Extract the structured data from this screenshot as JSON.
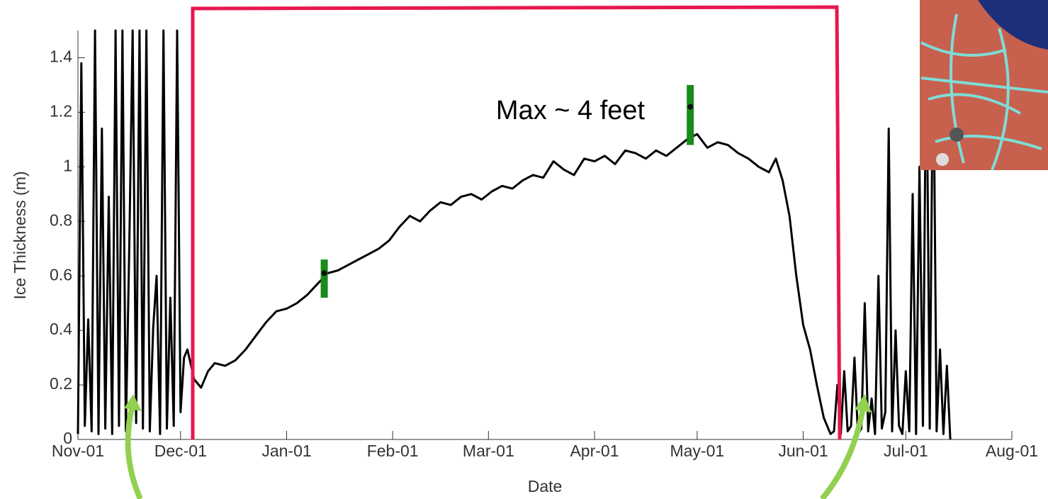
{
  "chart_data": {
    "type": "line",
    "xlabel": "Date",
    "ylabel": "Ice Thickness (m)",
    "annotation": "Max ~ 4 feet",
    "xlim": [
      0,
      273
    ],
    "xticks": [
      {
        "value": 0,
        "label": "Nov-01"
      },
      {
        "value": 30,
        "label": "Dec-01"
      },
      {
        "value": 61,
        "label": "Jan-01"
      },
      {
        "value": 92,
        "label": "Feb-01"
      },
      {
        "value": 120,
        "label": "Mar-01"
      },
      {
        "value": 151,
        "label": "Apr-01"
      },
      {
        "value": 181,
        "label": "May-01"
      },
      {
        "value": 212,
        "label": "Jun-01"
      },
      {
        "value": 242,
        "label": "Jul-01"
      },
      {
        "value": 273,
        "label": "Aug-01"
      }
    ],
    "ylim": [
      0,
      1.5
    ],
    "yticks": [
      0,
      0.2,
      0.4,
      0.6,
      0.8,
      1,
      1.2,
      1.4
    ],
    "grid": false,
    "series": [
      {
        "color": "#000000",
        "x": [
          0,
          1,
          2,
          3,
          4,
          5,
          6,
          7,
          8,
          9,
          10,
          11,
          12,
          13,
          14,
          15,
          16,
          17,
          18,
          19,
          20,
          21,
          22,
          23,
          24,
          25,
          26,
          27,
          28,
          29,
          30,
          31,
          32,
          34,
          36,
          38,
          40,
          43,
          46,
          49,
          52,
          55,
          58,
          61,
          64,
          67,
          70,
          73,
          76,
          79,
          82,
          85,
          88,
          91,
          94,
          97,
          100,
          103,
          106,
          109,
          112,
          115,
          118,
          121,
          124,
          127,
          130,
          133,
          136,
          139,
          142,
          145,
          148,
          151,
          154,
          157,
          160,
          163,
          166,
          169,
          172,
          175,
          178,
          181,
          184,
          187,
          190,
          193,
          196,
          199,
          202,
          204,
          206,
          208,
          210,
          212,
          214,
          216,
          218,
          220,
          221,
          222,
          223,
          224,
          225,
          226,
          227,
          228,
          229,
          230,
          231,
          232,
          233,
          234,
          235,
          236,
          237,
          238,
          239,
          240,
          241,
          242,
          243,
          244,
          245,
          246,
          247,
          248,
          249,
          250,
          251,
          252,
          253,
          254,
          255
        ],
        "values": [
          0.02,
          1.38,
          0.05,
          0.44,
          0.03,
          1.5,
          0.02,
          1.14,
          0.04,
          0.89,
          0.02,
          1.5,
          0.05,
          1.5,
          0.03,
          0.7,
          1.5,
          0.06,
          1.5,
          0.04,
          1.5,
          0.03,
          0.41,
          0.6,
          0.02,
          1.5,
          0.04,
          0.52,
          0.05,
          1.5,
          0.1,
          0.3,
          0.33,
          0.22,
          0.19,
          0.25,
          0.28,
          0.27,
          0.29,
          0.33,
          0.38,
          0.43,
          0.47,
          0.48,
          0.5,
          0.53,
          0.57,
          0.61,
          0.62,
          0.64,
          0.66,
          0.68,
          0.7,
          0.73,
          0.78,
          0.82,
          0.8,
          0.84,
          0.87,
          0.86,
          0.89,
          0.9,
          0.88,
          0.91,
          0.93,
          0.92,
          0.95,
          0.97,
          0.96,
          1.02,
          0.99,
          0.97,
          1.03,
          1.02,
          1.04,
          1.01,
          1.06,
          1.05,
          1.03,
          1.06,
          1.04,
          1.07,
          1.1,
          1.12,
          1.07,
          1.09,
          1.08,
          1.05,
          1.03,
          1.0,
          0.98,
          1.03,
          0.95,
          0.82,
          0.6,
          0.42,
          0.33,
          0.2,
          0.08,
          0.02,
          0.03,
          0.2,
          0.02,
          0.25,
          0.03,
          0.05,
          0.3,
          0.02,
          0.04,
          0.5,
          0.03,
          0.15,
          0.02,
          0.6,
          0.04,
          0.1,
          1.14,
          0.03,
          0.4,
          0.05,
          0.02,
          0.25,
          0.03,
          0.9,
          0.02,
          1.0,
          0.05,
          1.5,
          0.04,
          1.5,
          0.03,
          0.33,
          0.02,
          0.27,
          0.0
        ]
      }
    ],
    "measurements": {
      "color": "#1a8a1a",
      "x": [
        72,
        179
      ],
      "values": [
        0.61,
        1.22
      ],
      "lower": [
        0.52,
        1.08
      ],
      "upper": [
        0.66,
        1.3
      ]
    }
  }
}
